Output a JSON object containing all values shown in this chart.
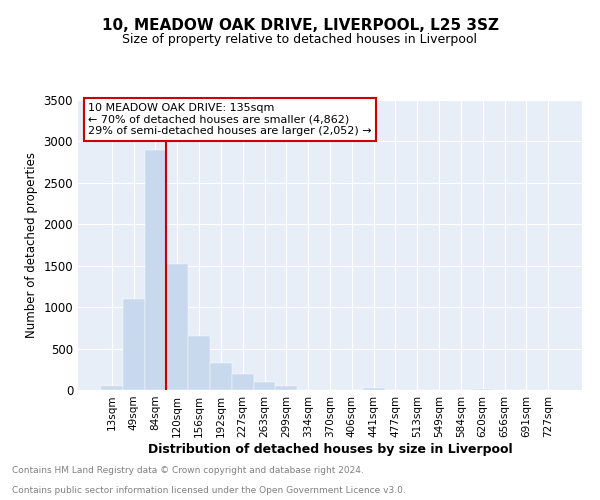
{
  "title": "10, MEADOW OAK DRIVE, LIVERPOOL, L25 3SZ",
  "subtitle": "Size of property relative to detached houses in Liverpool",
  "xlabel": "Distribution of detached houses by size in Liverpool",
  "ylabel": "Number of detached properties",
  "footer_line1": "Contains HM Land Registry data © Crown copyright and database right 2024.",
  "footer_line2": "Contains public sector information licensed under the Open Government Licence v3.0.",
  "bar_labels": [
    "13sqm",
    "49sqm",
    "84sqm",
    "120sqm",
    "156sqm",
    "192sqm",
    "227sqm",
    "263sqm",
    "299sqm",
    "334sqm",
    "370sqm",
    "406sqm",
    "441sqm",
    "477sqm",
    "513sqm",
    "549sqm",
    "584sqm",
    "620sqm",
    "656sqm",
    "691sqm",
    "727sqm"
  ],
  "bar_values": [
    50,
    1100,
    2900,
    1520,
    650,
    330,
    195,
    100,
    50,
    0,
    0,
    0,
    30,
    0,
    0,
    0,
    0,
    15,
    0,
    0,
    0
  ],
  "bar_color": "#c8d9ee",
  "annotation_line1": "10 MEADOW OAK DRIVE: 135sqm",
  "annotation_line2": "← 70% of detached houses are smaller (4,862)",
  "annotation_line3": "29% of semi-detached houses are larger (2,052) →",
  "vline_x": 3,
  "ylim": [
    0,
    3500
  ],
  "yticks": [
    0,
    500,
    1000,
    1500,
    2000,
    2500,
    3000,
    3500
  ],
  "background_color": "#e8eef8",
  "annotation_box_color": "#cc0000",
  "vline_color": "#cc0000",
  "grid_color": "#ffffff",
  "title_fontsize": 11,
  "subtitle_fontsize": 9
}
